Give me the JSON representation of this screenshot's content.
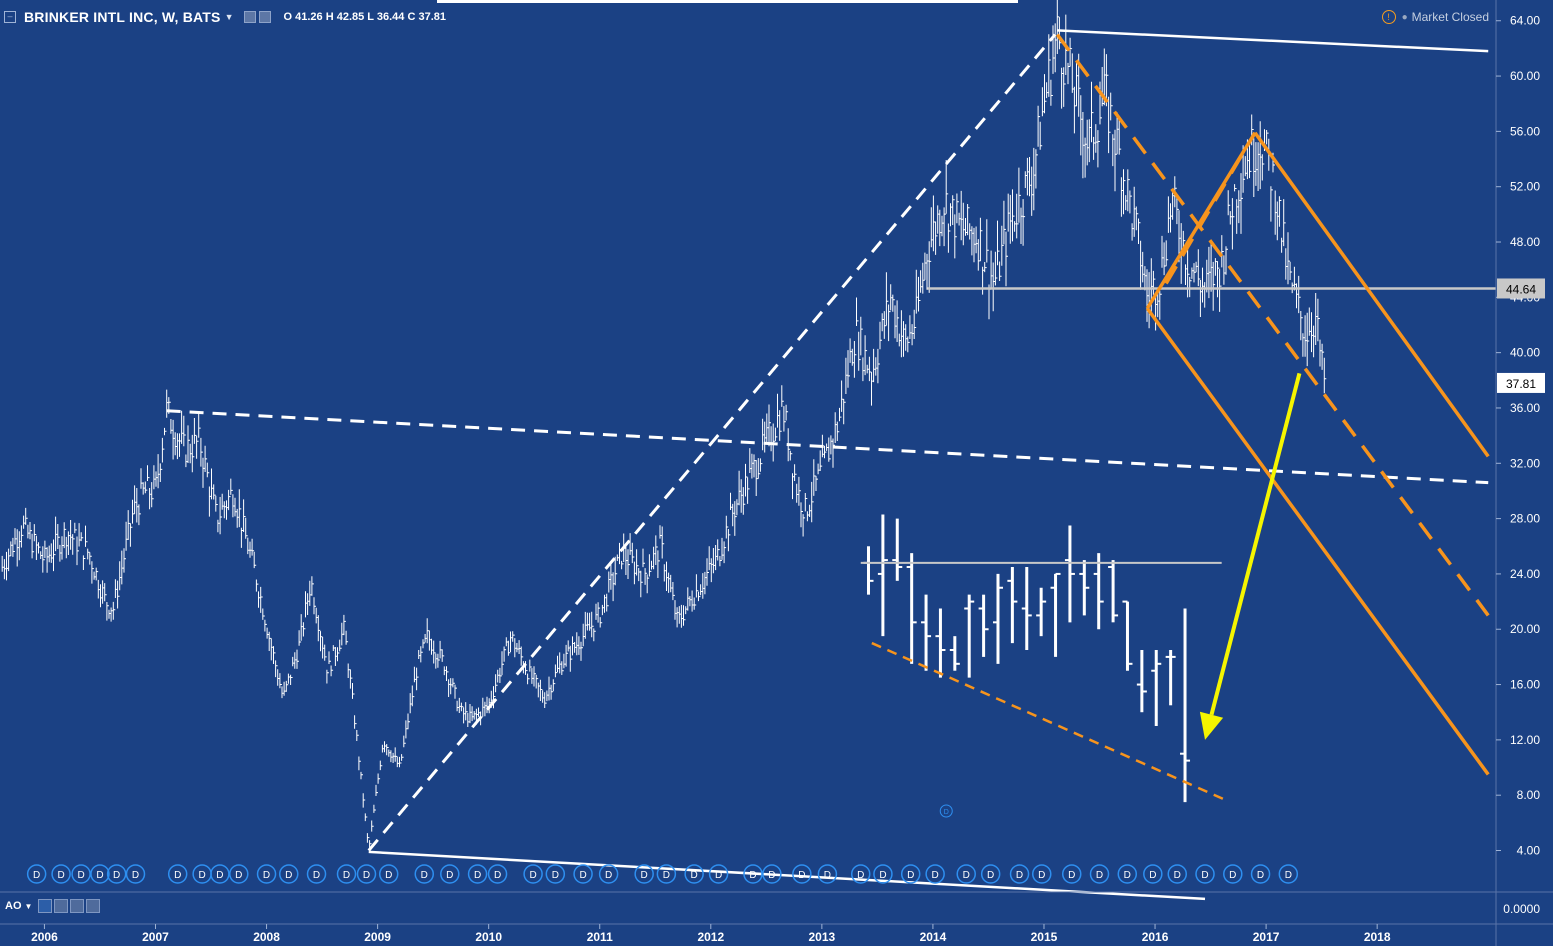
{
  "header": {
    "symbol": "BRINKER INTL INC, W, BATS",
    "ohlc": "O 41.26 H 42.85 L 36.44 C 37.81",
    "status": "Market Closed"
  },
  "indicator": {
    "label": "AO"
  },
  "colors": {
    "background": "#1b4184",
    "price": "#ffffff",
    "orange": "#f7941d",
    "yellow": "#f5f500",
    "level_line": "#c8c8c8"
  },
  "icons": [
    "collapse-icon",
    "settings-icon",
    "alert-icon",
    "dividend-marker-icon",
    "eye-icon"
  ],
  "chart_data": {
    "type": "ohlc",
    "title": "BRINKER INTL INC, W, BATS",
    "interval": "W",
    "ylim": [
      1.0,
      65.5
    ],
    "y_ticks": [
      64,
      60,
      56,
      52,
      48,
      44,
      40,
      36,
      32,
      28,
      24,
      20,
      16,
      12,
      8,
      4
    ],
    "y_tick_labels": [
      "64.00",
      "60.00",
      "56.00",
      "52.00",
      "48.00",
      "44.00",
      "40.00",
      "36.00",
      "32.00",
      "28.00",
      "24.00",
      "20.00",
      "16.00",
      "12.00",
      "8.00",
      "4.00"
    ],
    "x_ticks": [
      2006,
      2007,
      2008,
      2009,
      2010,
      2011,
      2012,
      2013,
      2014,
      2015,
      2016,
      2017,
      2018
    ],
    "x_tick_labels": [
      "2006",
      "2007",
      "2008",
      "2009",
      "2010",
      "2011",
      "2012",
      "2013",
      "2014",
      "2015",
      "2016",
      "2017",
      "2018"
    ],
    "xlim": [
      2005.6,
      2019.07
    ],
    "price_path": [
      [
        2005.62,
        24.5
      ],
      [
        2005.8,
        27.5
      ],
      [
        2006.0,
        25.0
      ],
      [
        2006.2,
        27.0
      ],
      [
        2006.4,
        25.5
      ],
      [
        2006.55,
        22.0
      ],
      [
        2006.62,
        21.5
      ],
      [
        2006.8,
        28.5
      ],
      [
        2006.9,
        30.0
      ],
      [
        2007.0,
        30.0
      ],
      [
        2007.1,
        35.8
      ],
      [
        2007.25,
        33.0
      ],
      [
        2007.4,
        33.5
      ],
      [
        2007.55,
        28.0
      ],
      [
        2007.7,
        30.0
      ],
      [
        2007.9,
        24.0
      ],
      [
        2008.05,
        18.5
      ],
      [
        2008.15,
        15.0
      ],
      [
        2008.3,
        19.0
      ],
      [
        2008.4,
        23.5
      ],
      [
        2008.55,
        17.0
      ],
      [
        2008.7,
        20.0
      ],
      [
        2008.8,
        13.0
      ],
      [
        2008.92,
        4.0
      ],
      [
        2009.05,
        12.0
      ],
      [
        2009.2,
        10.0
      ],
      [
        2009.35,
        17.0
      ],
      [
        2009.45,
        19.5
      ],
      [
        2009.6,
        17.5
      ],
      [
        2009.75,
        14.0
      ],
      [
        2009.85,
        13.5
      ],
      [
        2010.0,
        14.5
      ],
      [
        2010.2,
        19.5
      ],
      [
        2010.35,
        17.0
      ],
      [
        2010.5,
        15.0
      ],
      [
        2010.65,
        17.5
      ],
      [
        2010.85,
        19.5
      ],
      [
        2011.0,
        21.0
      ],
      [
        2011.2,
        25.5
      ],
      [
        2011.4,
        24.0
      ],
      [
        2011.55,
        26.0
      ],
      [
        2011.7,
        20.5
      ],
      [
        2011.85,
        22.5
      ],
      [
        2012.05,
        25.0
      ],
      [
        2012.2,
        28.5
      ],
      [
        2012.35,
        31.0
      ],
      [
        2012.5,
        33.5
      ],
      [
        2012.65,
        36.0
      ],
      [
        2012.78,
        30.0
      ],
      [
        2012.85,
        28.5
      ],
      [
        2013.0,
        31.5
      ],
      [
        2013.15,
        35.0
      ],
      [
        2013.3,
        41.5
      ],
      [
        2013.45,
        38.5
      ],
      [
        2013.62,
        44.0
      ],
      [
        2013.75,
        40.5
      ],
      [
        2013.85,
        42.5
      ],
      [
        2013.95,
        47.5
      ],
      [
        2014.1,
        51.0
      ],
      [
        2014.25,
        49.0
      ],
      [
        2014.4,
        48.5
      ],
      [
        2014.55,
        45.0
      ],
      [
        2014.7,
        49.5
      ],
      [
        2014.9,
        53.0
      ],
      [
        2015.0,
        58.0
      ],
      [
        2015.12,
        63.0
      ],
      [
        2015.25,
        59.5
      ],
      [
        2015.4,
        55.0
      ],
      [
        2015.55,
        58.5
      ],
      [
        2015.7,
        53.5
      ],
      [
        2015.85,
        48.0
      ],
      [
        2015.93,
        44.0
      ],
      [
        2016.05,
        45.5
      ],
      [
        2016.15,
        51.0
      ],
      [
        2016.3,
        46.5
      ],
      [
        2016.45,
        44.5
      ],
      [
        2016.6,
        46.5
      ],
      [
        2016.7,
        51.0
      ],
      [
        2016.82,
        54.0
      ],
      [
        2016.95,
        55.5
      ],
      [
        2017.08,
        52.0
      ],
      [
        2017.2,
        45.5
      ],
      [
        2017.35,
        41.5
      ],
      [
        2017.45,
        42.5
      ],
      [
        2017.5,
        39.0
      ],
      [
        2017.53,
        37.81
      ]
    ],
    "last_close": 37.81,
    "last_close_label": "37.81",
    "level_label": "44.64",
    "level_value": 44.64,
    "inset_bars": [
      [
        24.8,
        26.0,
        22.5,
        23.5
      ],
      [
        24.0,
        28.3,
        19.5,
        25.0
      ],
      [
        25.0,
        28.0,
        23.5,
        24.5
      ],
      [
        24.5,
        25.5,
        17.5,
        20.5
      ],
      [
        20.5,
        22.5,
        17.0,
        19.5
      ],
      [
        19.5,
        21.5,
        16.5,
        18.5
      ],
      [
        18.5,
        19.5,
        17.0,
        17.5
      ],
      [
        21.5,
        22.5,
        16.5,
        22.0
      ],
      [
        21.5,
        22.5,
        18.0,
        20.0
      ],
      [
        20.5,
        24.0,
        17.5,
        23.0
      ],
      [
        23.5,
        24.5,
        19.0,
        22.0
      ],
      [
        21.5,
        24.5,
        18.5,
        21.0
      ],
      [
        21.0,
        23.0,
        19.5,
        22.0
      ],
      [
        23.0,
        24.0,
        18.0,
        24.0
      ],
      [
        25.0,
        27.5,
        20.5,
        24.0
      ],
      [
        24.0,
        25.0,
        21.0,
        23.0
      ],
      [
        24.0,
        25.5,
        20.0,
        22.0
      ],
      [
        24.5,
        25.0,
        20.5,
        21.0
      ],
      [
        22.0,
        22.0,
        17.0,
        17.5
      ],
      [
        16.0,
        18.5,
        14.0,
        15.5
      ],
      [
        17.0,
        18.5,
        13.0,
        17.5
      ],
      [
        18.0,
        18.5,
        14.5,
        18.0
      ],
      [
        11.0,
        21.5,
        7.5,
        10.5
      ]
    ],
    "dividend_marker_years": [
      2005.93,
      2006.15,
      2006.33,
      2006.5,
      2006.65,
      2006.82,
      2007.2,
      2007.42,
      2007.58,
      2007.75,
      2008.0,
      2008.2,
      2008.45,
      2008.72,
      2008.9,
      2009.1,
      2009.42,
      2009.65,
      2009.9,
      2010.08,
      2010.4,
      2010.6,
      2010.85,
      2011.08,
      2011.4,
      2011.6,
      2011.85,
      2012.07,
      2012.38,
      2012.55,
      2012.82,
      2013.05,
      2013.35,
      2013.55,
      2013.8,
      2014.02,
      2014.3,
      2014.52,
      2014.78,
      2014.98,
      2015.25,
      2015.5,
      2015.75,
      2015.98,
      2016.2,
      2016.45,
      2016.7,
      2016.95,
      2017.2
    ],
    "drawings": {
      "white_solid_lines": [
        [
          [
            2015.12,
            63.3
          ],
          [
            2019.0,
            61.8
          ]
        ],
        [
          [
            2008.92,
            3.9
          ],
          [
            2016.45,
            0.5
          ]
        ]
      ],
      "white_dashed_lines": [
        [
          [
            2008.92,
            4.0
          ],
          [
            2015.1,
            63.0
          ]
        ],
        [
          [
            2007.1,
            35.8
          ],
          [
            2019.0,
            30.6
          ]
        ]
      ],
      "orange_solid_lines": [
        [
          [
            2015.93,
            43.2
          ],
          [
            2016.9,
            55.9
          ]
        ],
        [
          [
            2016.9,
            55.9
          ],
          [
            2019.0,
            32.5
          ]
        ],
        [
          [
            2015.93,
            43.2
          ],
          [
            2019.0,
            9.5
          ]
        ]
      ],
      "orange_dashed_lines": [
        [
          [
            2015.12,
            63.0
          ],
          [
            2019.0,
            21.0
          ]
        ],
        [
          [
            2016.1,
            45.0
          ],
          [
            2016.9,
            55.9
          ]
        ]
      ],
      "inset_orange_dashed": [
        [
          2013.45,
          19.0
        ],
        [
          2016.65,
          7.6
        ]
      ],
      "inset_level_line": [
        [
          2013.35,
          24.8
        ],
        [
          2016.6,
          24.8
        ]
      ],
      "yellow_arrow": [
        [
          2017.3,
          38.5
        ],
        [
          2016.45,
          12.0
        ]
      ]
    }
  }
}
